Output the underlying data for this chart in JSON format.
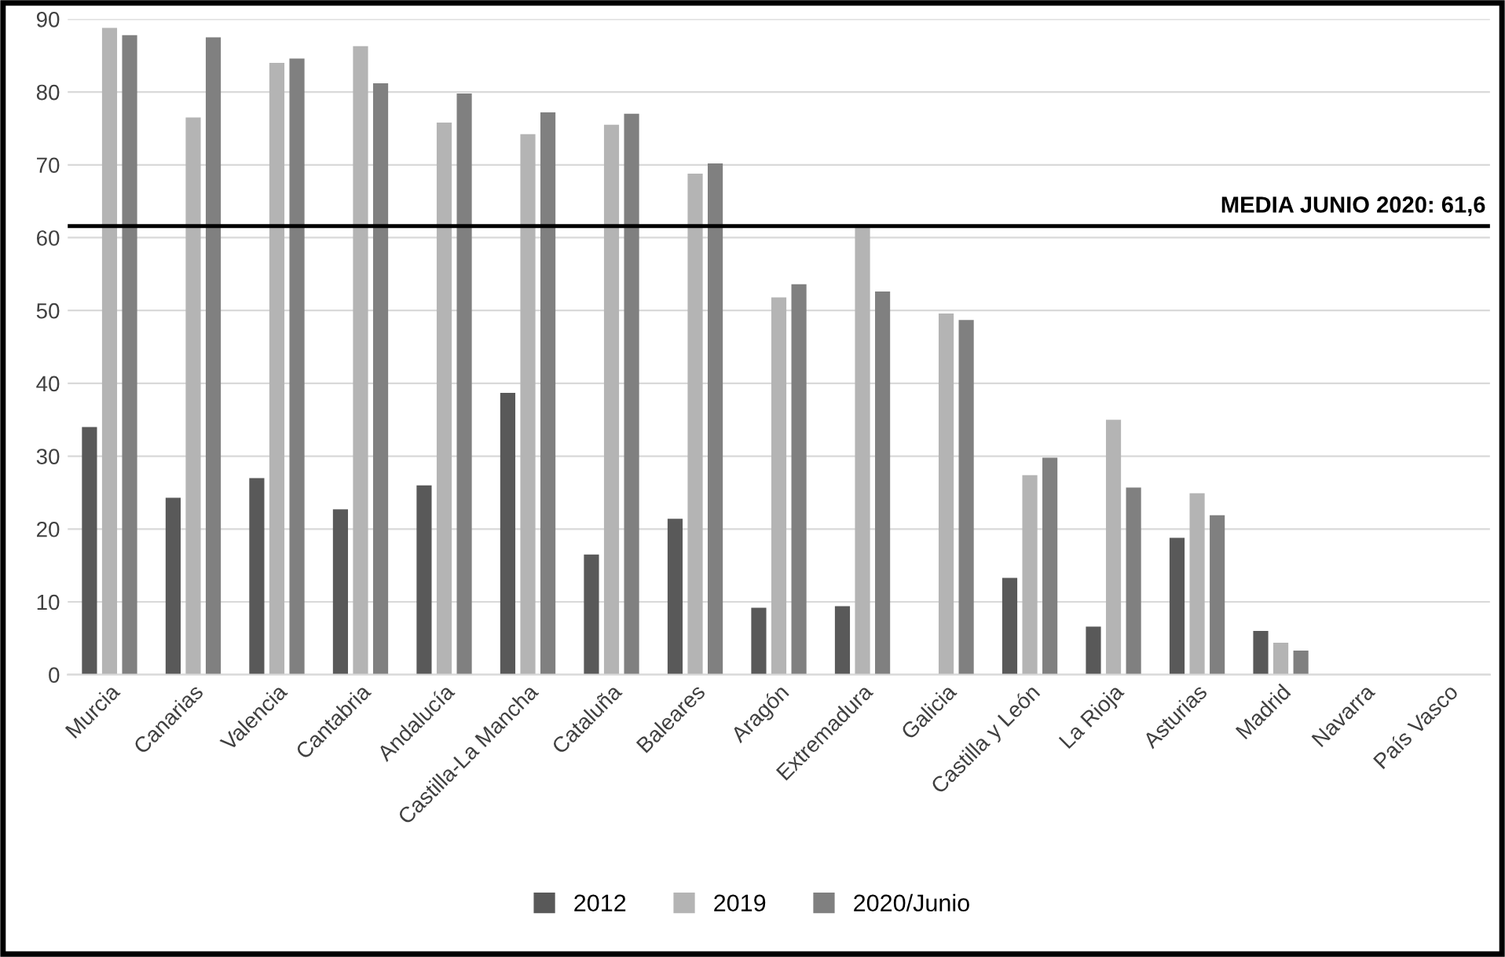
{
  "chart_data": {
    "type": "bar",
    "categories": [
      "Murcia",
      "Canarias",
      "Valencia",
      "Cantabria",
      "Andalucía",
      "Castilla-La Mancha",
      "Cataluña",
      "Baleares",
      "Aragón",
      "Extremadura",
      "Galicia",
      "Castilla y León",
      "La Rioja",
      "Asturias",
      "Madrid",
      "Navarra",
      "País Vasco"
    ],
    "series": [
      {
        "name": "2012",
        "color": "#595959",
        "values": [
          34,
          24.3,
          27,
          22.7,
          26,
          38.7,
          16.5,
          21.4,
          9.2,
          9.4,
          null,
          13.3,
          6.6,
          18.8,
          6,
          null,
          null
        ]
      },
      {
        "name": "2019",
        "color": "#b4b4b4",
        "values": [
          88.8,
          76.5,
          84,
          86.3,
          75.8,
          74.2,
          75.5,
          68.8,
          51.8,
          61.8,
          49.6,
          27.4,
          35,
          24.9,
          4.4,
          null,
          null
        ]
      },
      {
        "name": "2020/Junio",
        "color": "#808080",
        "values": [
          87.8,
          87.5,
          84.6,
          81.2,
          79.8,
          77.2,
          77,
          70.2,
          53.6,
          52.6,
          48.7,
          29.8,
          25.7,
          21.9,
          3.3,
          null,
          null
        ]
      }
    ],
    "ylim": [
      0,
      90
    ],
    "yticks": [
      0,
      10,
      20,
      30,
      40,
      50,
      60,
      70,
      80,
      90
    ],
    "ref_lines": [
      {
        "axis": "y",
        "value": 61.6,
        "label": "MEDIA JUNIO 2020: 61,6",
        "color": "#000000"
      }
    ],
    "grid": "y",
    "legend": "bottom"
  }
}
